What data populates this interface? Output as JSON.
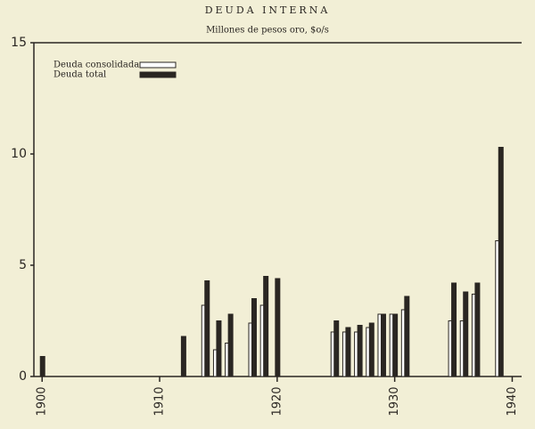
{
  "chart_data": {
    "type": "bar",
    "title": "DEUDA INTERNA",
    "subtitle": "Millones de pesos oro, $o/s",
    "x": [
      1900,
      1912,
      1914,
      1915,
      1916,
      1918,
      1919,
      1920,
      1925,
      1926,
      1927,
      1928,
      1929,
      1930,
      1931,
      1935,
      1936,
      1937,
      1939
    ],
    "series": [
      {
        "name": "Deuda consolidada",
        "color": "#ffffff",
        "values": [
          null,
          null,
          3.2,
          1.2,
          1.5,
          2.4,
          3.2,
          null,
          2.0,
          2.0,
          2.0,
          2.2,
          2.8,
          2.8,
          3.0,
          2.5,
          2.5,
          3.7,
          6.1
        ]
      },
      {
        "name": "Deuda total",
        "color": "#2a2622",
        "values": [
          0.9,
          1.8,
          4.3,
          2.5,
          2.8,
          3.5,
          4.5,
          4.4,
          2.5,
          2.2,
          2.3,
          2.4,
          2.8,
          2.8,
          3.6,
          4.2,
          3.8,
          4.2,
          10.3
        ]
      }
    ],
    "xlim": [
      1899.3,
      1940.8
    ],
    "xticks": [
      1900,
      1910,
      1920,
      1930,
      1940
    ],
    "ylim": [
      0,
      15
    ],
    "yticks": [
      0,
      5,
      10,
      15
    ]
  }
}
